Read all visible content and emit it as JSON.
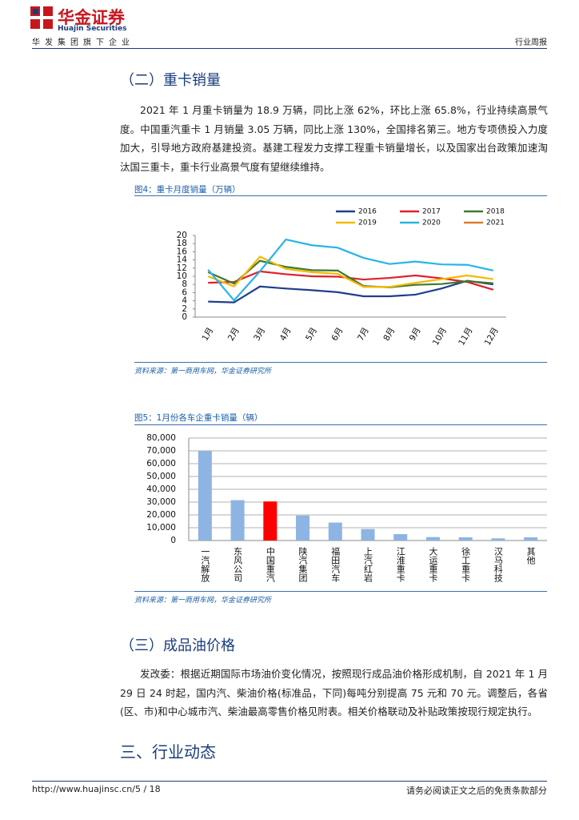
{
  "header": {
    "brand": "华金证券",
    "brand_en": "Huajin Securities",
    "tagline": "华发集团旗下企业",
    "report_type": "行业周报"
  },
  "sections": [
    {
      "heading": "（二）重卡销量",
      "paragraph": "2021 年 1 月重卡销量为 18.9 万辆，同比上涨 62%，环比上涨 65.8%，行业持续高景气度。中国重汽重卡 1 月销量 3.05 万辆，同比上涨 130%，全国排名第三。地方专项债投入力度加大，引导地方政府基建投资。基建工程发力支撑工程重卡销量增长，以及国家出台政策加速淘汰国三重卡，重卡行业高景气度有望继续维持。"
    },
    {
      "heading": "（三）成品油价格",
      "paragraph": "发改委：根据近期国际市场油价变化情况，按照现行成品油价格形成机制，自 2021 年 1 月 29 日 24 时起，国内汽、柴油价格(标准品，下同)每吨分别提高 75 元和 70 元。调整后，各省(区、市)和中心城市汽、柴油最高零售价格见附表。相关价格联动及补贴政策按现行规定执行。"
    },
    {
      "heading": "三、行业动态"
    }
  ],
  "chart_data": [
    {
      "type": "line",
      "title": "图4：重卡月度销量（万辆）",
      "source": "资料来源：第一商用车网，华金证券研究所",
      "categories": [
        "1月",
        "2月",
        "3月",
        "4月",
        "5月",
        "6月",
        "7月",
        "8月",
        "9月",
        "10月",
        "11月",
        "12月"
      ],
      "series": [
        {
          "name": "2016",
          "color": "#1f3f8f",
          "values": [
            3.8,
            3.6,
            7.5,
            7.0,
            6.6,
            6.1,
            5.1,
            5.1,
            5.5,
            7.0,
            8.9,
            8.0
          ]
        },
        {
          "name": "2017",
          "color": "#e0202a",
          "values": [
            8.4,
            8.6,
            11.2,
            10.5,
            10.0,
            9.9,
            9.2,
            9.6,
            10.2,
            9.5,
            8.6,
            6.7
          ]
        },
        {
          "name": "2018",
          "color": "#3d7a2e",
          "values": [
            11.0,
            8.2,
            13.8,
            12.3,
            11.5,
            11.4,
            7.6,
            7.3,
            7.9,
            8.1,
            8.8,
            8.3
          ]
        },
        {
          "name": "2019",
          "color": "#f5b800",
          "values": [
            10.0,
            7.5,
            14.8,
            11.8,
            11.0,
            10.6,
            7.4,
            7.4,
            8.4,
            9.3,
            10.2,
            9.3
          ]
        },
        {
          "name": "2020",
          "color": "#28b4e6",
          "values": [
            11.6,
            4.1,
            11.2,
            19.0,
            17.6,
            17.0,
            14.5,
            13.0,
            13.6,
            12.9,
            12.8,
            11.4
          ]
        },
        {
          "name": "2021",
          "color": "#e07a30",
          "values": [
            null,
            null,
            null,
            null,
            null,
            null,
            null,
            null,
            null,
            null,
            null,
            null
          ]
        }
      ],
      "ylim": [
        0,
        20
      ],
      "yticks": [
        0,
        2,
        4,
        6,
        8,
        10,
        12,
        14,
        16,
        18,
        20
      ],
      "grid": false,
      "legend": "top-right"
    },
    {
      "type": "bar",
      "title": "图5：1月份各车企重卡销量（辆）",
      "source": "资料来源：第一商用车网，华金证券研究所",
      "categories": [
        "一汽解放",
        "东风公司",
        "中国重汽",
        "陕汽集团",
        "福田汽车",
        "上汽红岩",
        "江淮重卡",
        "大运重卡",
        "徐工重卡",
        "汉马科技",
        "其他"
      ],
      "values": [
        70000,
        31500,
        30500,
        19500,
        14000,
        9000,
        5000,
        2700,
        2500,
        1700,
        2500
      ],
      "colors": [
        "#8db4e2",
        "#8db4e2",
        "#ff0000",
        "#8db4e2",
        "#8db4e2",
        "#8db4e2",
        "#8db4e2",
        "#8db4e2",
        "#8db4e2",
        "#8db4e2",
        "#8db4e2"
      ],
      "ylim": [
        0,
        80000
      ],
      "yticks": [
        0,
        {
          "value": 10000,
          "label": "10,000"
        },
        {
          "value": 20000,
          "label": "20,000"
        },
        {
          "value": 30000,
          "label": "30,000"
        },
        {
          "value": 40000,
          "label": "40,000"
        },
        {
          "value": 50000,
          "label": "50,000"
        },
        {
          "value": 60000,
          "label": "60,000"
        },
        {
          "value": 70000,
          "label": "70,000"
        },
        {
          "value": 80000,
          "label": "80,000"
        }
      ],
      "grid": true
    }
  ],
  "footer": {
    "url": "http://www.huajinsc.cn/5 / 18",
    "disclaimer": "请务必阅读正文之后的免责条款部分"
  }
}
